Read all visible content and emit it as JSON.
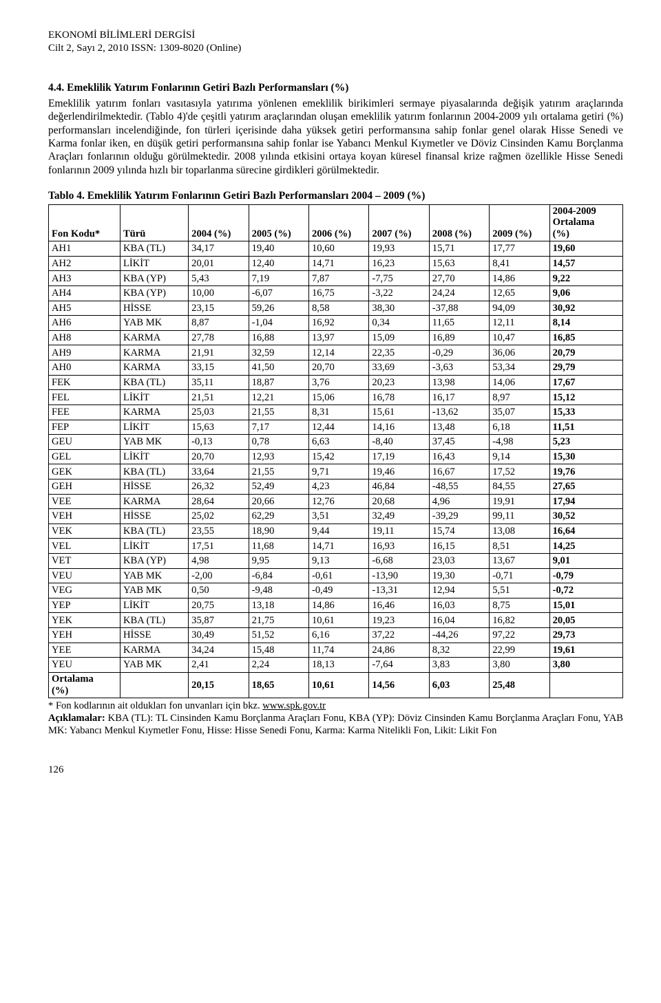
{
  "header": {
    "journal": "EKONOMİ BİLİMLERİ DERGİSİ",
    "issue": "Cilt 2, Sayı 2, 2010  ISSN: 1309-8020 (Online)"
  },
  "section": {
    "heading": "4.4. Emeklilik Yatırım Fonlarının Getiri Bazlı Performansları (%)",
    "paragraph": "Emeklilik yatırım fonları vasıtasıyla yatırıma yönlenen emeklilik birikimleri sermaye piyasalarında değişik yatırım araçlarında değerlendirilmektedir. (Tablo 4)'de çeşitli yatırım araçlarından oluşan emeklilik yatırım fonlarının 2004-2009 yılı ortalama getiri (%) performansları incelendiğinde, fon türleri içerisinde daha yüksek getiri performansına sahip fonlar genel olarak Hisse Senedi ve Karma fonlar iken, en düşük getiri performansına sahip fonlar ise Yabancı Menkul Kıymetler ve Döviz Cinsinden Kamu Borçlanma Araçları fonlarının olduğu görülmektedir. 2008 yılında etkisini ortaya koyan küresel finansal krize rağmen özellikle Hisse Senedi fonlarının 2009 yılında hızlı bir toparlanma sürecine girdikleri görülmektedir."
  },
  "table": {
    "caption": "Tablo 4. Emeklilik Yatırım Fonlarının Getiri Bazlı Performansları 2004 – 2009 (%)",
    "headers": {
      "code": "Fon Kodu*",
      "type": "Türü",
      "y2004": "2004 (%)",
      "y2005": "2005 (%)",
      "y2006": "2006 (%)",
      "y2007": "2007 (%)",
      "y2008": "2008 (%)",
      "y2009": "2009 (%)",
      "avg": "2004-2009 Ortalama (%)"
    },
    "avg_header_l1": "2004-2009",
    "avg_header_l2": "Ortalama",
    "avg_header_l3": "(%)",
    "rows": [
      {
        "code": "AH1",
        "type": "KBA (TL)",
        "y2004": "34,17",
        "y2005": "19,40",
        "y2006": "10,60",
        "y2007": "19,93",
        "y2008": "15,71",
        "y2009": "17,77",
        "avg": "19,60"
      },
      {
        "code": "AH2",
        "type": "LİKİT",
        "y2004": "20,01",
        "y2005": "12,40",
        "y2006": "14,71",
        "y2007": "16,23",
        "y2008": "15,63",
        "y2009": "8,41",
        "avg": "14,57"
      },
      {
        "code": "AH3",
        "type": "KBA (YP)",
        "y2004": "5,43",
        "y2005": "7,19",
        "y2006": "7,87",
        "y2007": "-7,75",
        "y2008": "27,70",
        "y2009": "14,86",
        "avg": "9,22"
      },
      {
        "code": "AH4",
        "type": "KBA (YP)",
        "y2004": "10,00",
        "y2005": "-6,07",
        "y2006": "16,75",
        "y2007": "-3,22",
        "y2008": "24,24",
        "y2009": "12,65",
        "avg": "9,06"
      },
      {
        "code": "AH5",
        "type": "HİSSE",
        "y2004": "23,15",
        "y2005": "59,26",
        "y2006": "8,58",
        "y2007": "38,30",
        "y2008": "-37,88",
        "y2009": "94,09",
        "avg": "30,92"
      },
      {
        "code": "AH6",
        "type": "YAB MK",
        "y2004": "8,87",
        "y2005": "-1,04",
        "y2006": "16,92",
        "y2007": "0,34",
        "y2008": "11,65",
        "y2009": "12,11",
        "avg": "8,14"
      },
      {
        "code": "AH8",
        "type": "KARMA",
        "y2004": "27,78",
        "y2005": "16,88",
        "y2006": "13,97",
        "y2007": "15,09",
        "y2008": "16,89",
        "y2009": "10,47",
        "avg": "16,85"
      },
      {
        "code": "AH9",
        "type": "KARMA",
        "y2004": "21,91",
        "y2005": "32,59",
        "y2006": "12,14",
        "y2007": "22,35",
        "y2008": "-0,29",
        "y2009": "36,06",
        "avg": "20,79"
      },
      {
        "code": "AH0",
        "type": "KARMA",
        "y2004": "33,15",
        "y2005": "41,50",
        "y2006": "20,70",
        "y2007": "33,69",
        "y2008": "-3,63",
        "y2009": "53,34",
        "avg": "29,79"
      },
      {
        "code": "FEK",
        "type": "KBA (TL)",
        "y2004": "35,11",
        "y2005": "18,87",
        "y2006": "3,76",
        "y2007": "20,23",
        "y2008": "13,98",
        "y2009": "14,06",
        "avg": "17,67"
      },
      {
        "code": "FEL",
        "type": "LİKİT",
        "y2004": "21,51",
        "y2005": "12,21",
        "y2006": "15,06",
        "y2007": "16,78",
        "y2008": "16,17",
        "y2009": "8,97",
        "avg": "15,12"
      },
      {
        "code": "FEE",
        "type": "KARMA",
        "y2004": "25,03",
        "y2005": "21,55",
        "y2006": "8,31",
        "y2007": "15,61",
        "y2008": "-13,62",
        "y2009": "35,07",
        "avg": "15,33"
      },
      {
        "code": "FEP",
        "type": "LİKİT",
        "y2004": "15,63",
        "y2005": "7,17",
        "y2006": "12,44",
        "y2007": "14,16",
        "y2008": "13,48",
        "y2009": "6,18",
        "avg": "11,51"
      },
      {
        "code": "GEU",
        "type": "YAB MK",
        "y2004": "-0,13",
        "y2005": "0,78",
        "y2006": "6,63",
        "y2007": "-8,40",
        "y2008": "37,45",
        "y2009": "-4,98",
        "avg": "5,23"
      },
      {
        "code": "GEL",
        "type": "LİKİT",
        "y2004": "20,70",
        "y2005": "12,93",
        "y2006": "15,42",
        "y2007": "17,19",
        "y2008": "16,43",
        "y2009": "9,14",
        "avg": "15,30"
      },
      {
        "code": "GEK",
        "type": "KBA (TL)",
        "y2004": "33,64",
        "y2005": "21,55",
        "y2006": "9,71",
        "y2007": "19,46",
        "y2008": "16,67",
        "y2009": "17,52",
        "avg": "19,76"
      },
      {
        "code": "GEH",
        "type": "HİSSE",
        "y2004": "26,32",
        "y2005": "52,49",
        "y2006": "4,23",
        "y2007": "46,84",
        "y2008": "-48,55",
        "y2009": "84,55",
        "avg": "27,65"
      },
      {
        "code": "VEE",
        "type": "KARMA",
        "y2004": "28,64",
        "y2005": "20,66",
        "y2006": "12,76",
        "y2007": "20,68",
        "y2008": "4,96",
        "y2009": "19,91",
        "avg": "17,94"
      },
      {
        "code": "VEH",
        "type": "HİSSE",
        "y2004": "25,02",
        "y2005": "62,29",
        "y2006": "3,51",
        "y2007": "32,49",
        "y2008": "-39,29",
        "y2009": "99,11",
        "avg": "30,52"
      },
      {
        "code": "VEK",
        "type": "KBA (TL)",
        "y2004": "23,55",
        "y2005": "18,90",
        "y2006": "9,44",
        "y2007": "19,11",
        "y2008": "15,74",
        "y2009": "13,08",
        "avg": "16,64"
      },
      {
        "code": "VEL",
        "type": "LİKİT",
        "y2004": "17,51",
        "y2005": "11,68",
        "y2006": "14,71",
        "y2007": "16,93",
        "y2008": "16,15",
        "y2009": "8,51",
        "avg": "14,25"
      },
      {
        "code": "VET",
        "type": "KBA (YP)",
        "y2004": "4,98",
        "y2005": "9,95",
        "y2006": "9,13",
        "y2007": "-6,68",
        "y2008": "23,03",
        "y2009": "13,67",
        "avg": "9,01"
      },
      {
        "code": "VEU",
        "type": "YAB MK",
        "y2004": "-2,00",
        "y2005": "-6,84",
        "y2006": "-0,61",
        "y2007": "-13,90",
        "y2008": "19,30",
        "y2009": "-0,71",
        "avg": "-0,79"
      },
      {
        "code": "VEG",
        "type": "YAB MK",
        "y2004": "0,50",
        "y2005": "-9,48",
        "y2006": "-0,49",
        "y2007": "-13,31",
        "y2008": "12,94",
        "y2009": "5,51",
        "avg": "-0,72"
      },
      {
        "code": "YEP",
        "type": "LİKİT",
        "y2004": "20,75",
        "y2005": "13,18",
        "y2006": "14,86",
        "y2007": "16,46",
        "y2008": "16,03",
        "y2009": "8,75",
        "avg": "15,01"
      },
      {
        "code": "YEK",
        "type": "KBA (TL)",
        "y2004": "35,87",
        "y2005": "21,75",
        "y2006": "10,61",
        "y2007": "19,23",
        "y2008": "16,04",
        "y2009": "16,82",
        "avg": "20,05"
      },
      {
        "code": "YEH",
        "type": "HİSSE",
        "y2004": "30,49",
        "y2005": "51,52",
        "y2006": "6,16",
        "y2007": "37,22",
        "y2008": "-44,26",
        "y2009": "97,22",
        "avg": "29,73"
      },
      {
        "code": "YEE",
        "type": "KARMA",
        "y2004": "34,24",
        "y2005": "15,48",
        "y2006": "11,74",
        "y2007": "24,86",
        "y2008": "8,32",
        "y2009": "22,99",
        "avg": "19,61"
      },
      {
        "code": "YEU",
        "type": "YAB MK",
        "y2004": "2,41",
        "y2005": "2,24",
        "y2006": "18,13",
        "y2007": "-7,64",
        "y2008": "3,83",
        "y2009": "3,80",
        "avg": "3,80"
      }
    ],
    "summary_row": {
      "label_l1": "Ortalama",
      "label_l2": "(%)",
      "y2004": "20,15",
      "y2005": "18,65",
      "y2006": "10,61",
      "y2007": "14,56",
      "y2008": "6,03",
      "y2009": "25,48",
      "avg": ""
    }
  },
  "footnote": {
    "line1_pre": "* Fon kodlarının ait oldukları fon unvanları için bkz. ",
    "line1_link": "www.spk.gov.tr",
    "line2_bold": "Açıklamalar:",
    "line2_rest": " KBA (TL): TL Cinsinden Kamu Borçlanma Araçları Fonu, KBA (YP): Döviz Cinsinden Kamu Borçlanma Araçları Fonu, YAB MK: Yabancı Menkul Kıymetler Fonu, Hisse: Hisse Senedi Fonu, Karma: Karma Nitelikli Fon, Likit: Likit Fon"
  },
  "page_number": "126"
}
